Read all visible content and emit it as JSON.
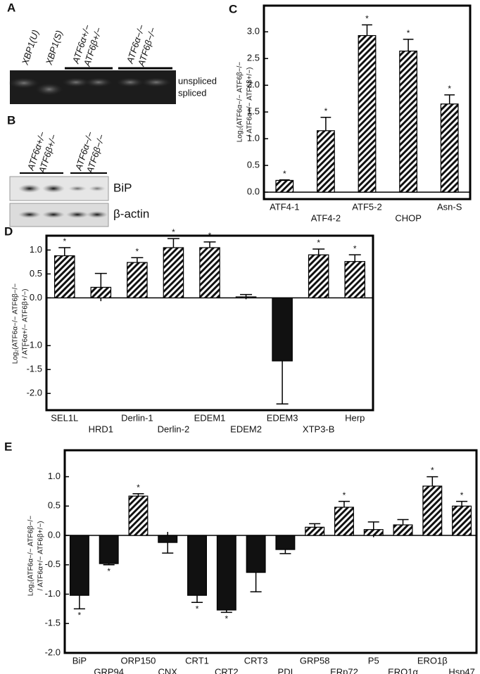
{
  "gel_a": {
    "panel": "A",
    "lanes": [
      "XBP1(U)",
      "XBP1(S)"
    ],
    "groups": [
      [
        "ATF6α+/−",
        "ATF6β+/−"
      ],
      [
        "ATF6α−/−",
        "ATF6β−/−"
      ]
    ],
    "bands": [
      "unspliced",
      "spliced"
    ]
  },
  "gel_b": {
    "panel": "B",
    "groups": [
      [
        "ATF6α+/−",
        "ATF6β+/−"
      ],
      [
        "ATF6α−/−",
        "ATF6β−/−"
      ]
    ],
    "bands": [
      "BiP",
      "β-actin"
    ]
  },
  "chart_data": [
    {
      "type": "bar",
      "panel": "C",
      "ylabel": [
        "Log₂(ATF6α−/− ATF6β−/−",
        "/ ATF6α+/− ATF6β+/−)"
      ],
      "categories": [
        "ATF4-1",
        "ATF4-2",
        "ATF5-2",
        "CHOP",
        "Asn-S"
      ],
      "values": [
        0.22,
        1.15,
        2.93,
        2.64,
        1.65
      ],
      "errors": [
        0.01,
        0.25,
        0.2,
        0.22,
        0.17
      ],
      "markers": [
        "*",
        "*",
        "*",
        "*",
        "*"
      ],
      "ylim": [
        -0.13,
        3.49
      ],
      "yticks": [
        {
          "value": 0,
          "label": "0.0"
        },
        {
          "value": 0.5,
          "label": "0.5"
        },
        {
          "value": 1,
          "label": "1.0"
        },
        {
          "value": 1.5,
          "label": "1.5"
        },
        {
          "value": 2,
          "label": "2.0"
        },
        {
          "value": 2.5,
          "label": "2.5"
        },
        {
          "value": 3,
          "label": "3.0"
        }
      ]
    },
    {
      "type": "bar",
      "panel": "D",
      "ylabel": [
        "Log₂(ATF6α−/− ATF6β−/−",
        "/ ATF6α+/− ATF6β+/−)"
      ],
      "categories": [
        "SEL1L",
        "HRD1",
        "Derlin-1",
        "Derlin-2",
        "EDEM1",
        "EDEM2",
        "EDEM3",
        "XTP3-B",
        "Herp"
      ],
      "values": [
        0.88,
        0.22,
        0.74,
        1.05,
        1.05,
        0.02,
        -1.32,
        0.9,
        0.76
      ],
      "errors": [
        0.17,
        0.29,
        0.1,
        0.19,
        0.12,
        0.05,
        0.9,
        0.12,
        0.14
      ],
      "markers": [
        "*",
        null,
        "*",
        "*",
        "*",
        null,
        null,
        "*",
        "*"
      ],
      "ylim": [
        -2.35,
        1.3
      ],
      "yticks": [
        {
          "value": 1,
          "label": "1.0"
        },
        {
          "value": 0.5,
          "label": "0.5"
        },
        {
          "value": 0,
          "label": "0.0"
        },
        {
          "value": -1,
          "label": "-1.0"
        },
        {
          "value": -1.5,
          "label": "-1.5"
        },
        {
          "value": -2,
          "label": "-2.0"
        }
      ]
    },
    {
      "type": "bar",
      "panel": "E",
      "ylabel": [
        "Log₂(ATF6α−/− ATF6β−/−",
        "/ ATF6α+/− ATF6β+/−)"
      ],
      "categories": [
        "BiP",
        "GRP94",
        "ORP150",
        "CNX",
        "CRT1",
        "CRT2",
        "CRT3",
        "PDI",
        "GRP58",
        "ERp72",
        "P5",
        "ERO1α",
        "ERO1β",
        "Hsp47"
      ],
      "values": [
        -1.02,
        -0.48,
        0.67,
        -0.12,
        -1.02,
        -1.27,
        -0.63,
        -0.24,
        0.14,
        0.48,
        0.1,
        0.18,
        0.84,
        0.5
      ],
      "errors": [
        0.23,
        0.02,
        0.04,
        0.18,
        0.12,
        0.04,
        0.33,
        0.07,
        0.06,
        0.1,
        0.13,
        0.09,
        0.16,
        0.08
      ],
      "markers": [
        "*",
        "*",
        "*",
        null,
        "*",
        "*",
        null,
        null,
        null,
        "*",
        null,
        null,
        "*",
        "*"
      ],
      "ylim": [
        -2,
        1.45
      ],
      "yticks": [
        {
          "value": -2,
          "label": "-2.0"
        },
        {
          "value": -1.5,
          "label": "-1.5"
        },
        {
          "value": -1,
          "label": "-1.0"
        },
        {
          "value": -0.5,
          "label": "-0.5"
        },
        {
          "value": 0,
          "label": "0.0"
        },
        {
          "value": 0.5,
          "label": "0.5"
        },
        {
          "value": 1,
          "label": "1.0"
        }
      ]
    }
  ]
}
